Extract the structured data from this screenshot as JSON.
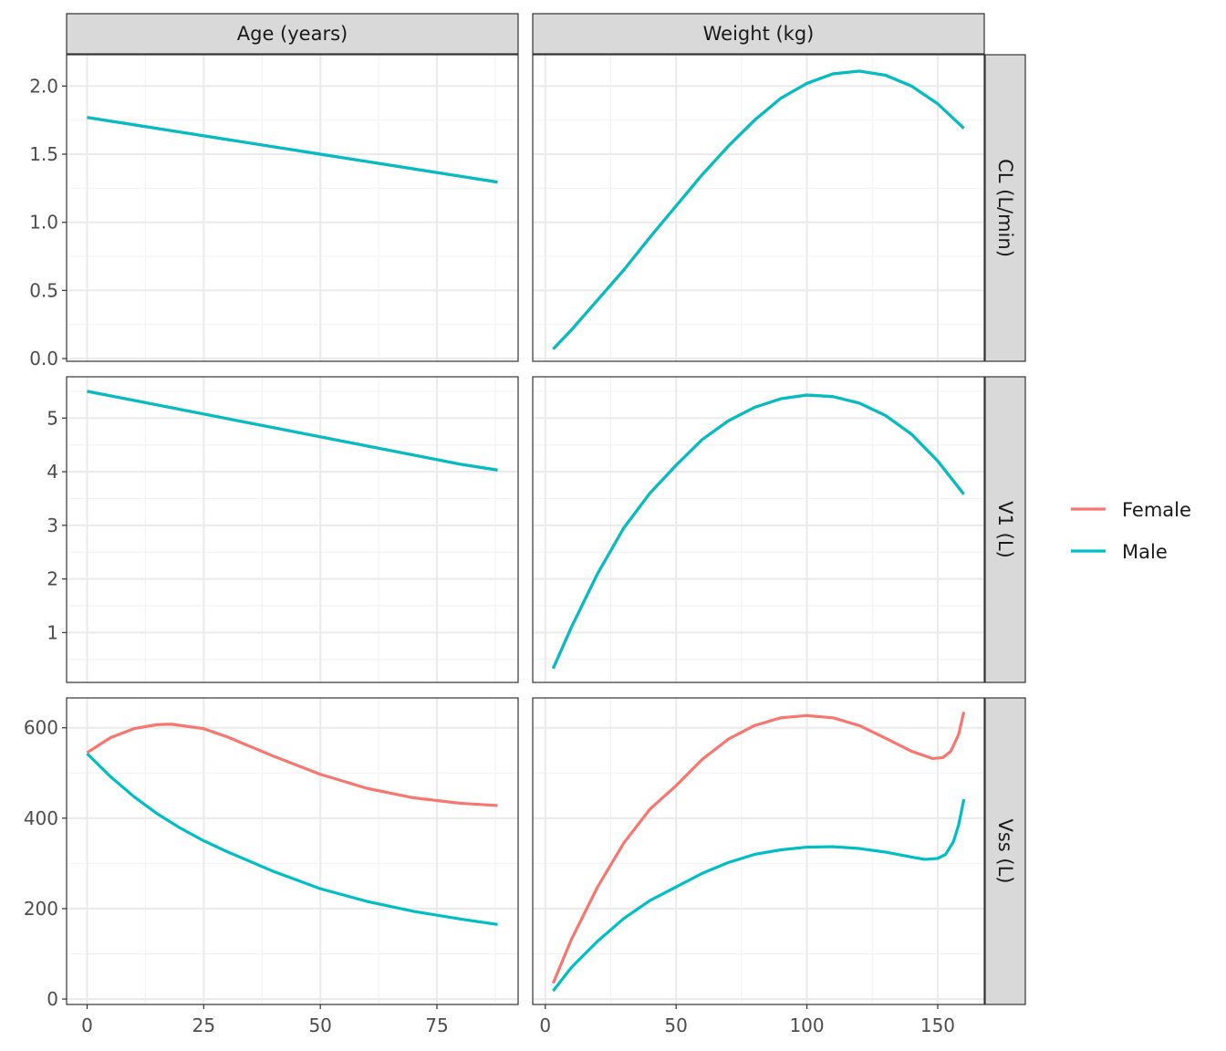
{
  "chart_data": {
    "type": "line",
    "layout": "facet-grid",
    "columns": [
      {
        "label": "Age (years)",
        "x_ticks": [
          0,
          25,
          50,
          75
        ],
        "xlim": [
          -4.4,
          92.4
        ]
      },
      {
        "label": "Weight (kg)",
        "x_ticks": [
          0,
          50,
          100,
          150
        ],
        "xlim": [
          -4.8,
          167.8
        ]
      }
    ],
    "rows": [
      {
        "label": "CL (L/min)",
        "y_ticks": [
          0.0,
          0.5,
          1.0,
          1.5,
          2.0
        ],
        "y_tick_labels": [
          "0.0",
          "0.5",
          "1.0",
          "1.5",
          "2.0"
        ],
        "ylim": [
          -0.02,
          2.23
        ]
      },
      {
        "label": "V1 (L)",
        "y_ticks": [
          1,
          2,
          3,
          4,
          5
        ],
        "y_tick_labels": [
          "1",
          "2",
          "3",
          "4",
          "5"
        ],
        "ylim": [
          0.07,
          5.77
        ]
      },
      {
        "label": "Vss (L)",
        "y_ticks": [
          0,
          200,
          400,
          600
        ],
        "y_tick_labels": [
          "0",
          "200",
          "400",
          "600"
        ],
        "ylim": [
          -12,
          666
        ]
      }
    ],
    "legend": {
      "position": "right",
      "entries": [
        {
          "name": "Female",
          "color": "#F8766D"
        },
        {
          "name": "Male",
          "color": "#00BFC4"
        }
      ]
    },
    "grid": true,
    "panels": [
      {
        "row": 0,
        "col": 0,
        "series": [
          {
            "name": "Female",
            "color": "#F8766D",
            "x": [
              0,
              10,
              20,
              30,
              40,
              50,
              60,
              70,
              80,
              88
            ],
            "y": [
              1.77,
              1.716,
              1.662,
              1.608,
              1.554,
              1.5,
              1.446,
              1.392,
              1.338,
              1.295
            ]
          },
          {
            "name": "Male",
            "color": "#00BFC4",
            "x": [
              0,
              10,
              20,
              30,
              40,
              50,
              60,
              70,
              80,
              88
            ],
            "y": [
              1.77,
              1.716,
              1.662,
              1.608,
              1.554,
              1.5,
              1.446,
              1.392,
              1.338,
              1.295
            ]
          }
        ]
      },
      {
        "row": 0,
        "col": 1,
        "series": [
          {
            "name": "Female",
            "color": "#F8766D",
            "x": [
              3,
              10,
              20,
              30,
              40,
              50,
              60,
              70,
              80,
              90,
              100,
              110,
              120,
              130,
              140,
              150,
              160
            ],
            "y": [
              0.07,
              0.21,
              0.43,
              0.65,
              0.89,
              1.12,
              1.35,
              1.56,
              1.75,
              1.91,
              2.02,
              2.09,
              2.11,
              2.08,
              2.0,
              1.87,
              1.69
            ]
          },
          {
            "name": "Male",
            "color": "#00BFC4",
            "x": [
              3,
              10,
              20,
              30,
              40,
              50,
              60,
              70,
              80,
              90,
              100,
              110,
              120,
              130,
              140,
              150,
              160
            ],
            "y": [
              0.07,
              0.21,
              0.43,
              0.65,
              0.89,
              1.12,
              1.35,
              1.56,
              1.75,
              1.91,
              2.02,
              2.09,
              2.11,
              2.08,
              2.0,
              1.87,
              1.69
            ]
          }
        ]
      },
      {
        "row": 1,
        "col": 0,
        "series": [
          {
            "name": "Female",
            "color": "#F8766D",
            "x": [
              0,
              10,
              20,
              30,
              40,
              50,
              60,
              70,
              80,
              88
            ],
            "y": [
              5.5,
              5.33,
              5.16,
              4.99,
              4.82,
              4.65,
              4.48,
              4.31,
              4.14,
              4.03
            ]
          },
          {
            "name": "Male",
            "color": "#00BFC4",
            "x": [
              0,
              10,
              20,
              30,
              40,
              50,
              60,
              70,
              80,
              88
            ],
            "y": [
              5.5,
              5.33,
              5.16,
              4.99,
              4.82,
              4.65,
              4.48,
              4.31,
              4.14,
              4.03
            ]
          }
        ]
      },
      {
        "row": 1,
        "col": 1,
        "series": [
          {
            "name": "Female",
            "color": "#F8766D",
            "x": [
              3,
              10,
              20,
              30,
              40,
              50,
              60,
              70,
              80,
              90,
              100,
              110,
              120,
              130,
              140,
              150,
              160
            ],
            "y": [
              0.33,
              1.1,
              2.1,
              2.95,
              3.6,
              4.12,
              4.6,
              4.95,
              5.2,
              5.36,
              5.43,
              5.4,
              5.28,
              5.05,
              4.7,
              4.2,
              3.58
            ]
          },
          {
            "name": "Male",
            "color": "#00BFC4",
            "x": [
              3,
              10,
              20,
              30,
              40,
              50,
              60,
              70,
              80,
              90,
              100,
              110,
              120,
              130,
              140,
              150,
              160
            ],
            "y": [
              0.33,
              1.1,
              2.1,
              2.95,
              3.6,
              4.12,
              4.6,
              4.95,
              5.2,
              5.36,
              5.43,
              5.4,
              5.28,
              5.05,
              4.7,
              4.2,
              3.58
            ]
          }
        ]
      },
      {
        "row": 2,
        "col": 0,
        "series": [
          {
            "name": "Female",
            "color": "#F8766D",
            "x": [
              0,
              5,
              10,
              15,
              18,
              25,
              30,
              40,
              50,
              60,
              70,
              80,
              88
            ],
            "y": [
              545,
              578,
              598,
              607,
              608,
              598,
              580,
              537,
              497,
              466,
              445,
              433,
              428
            ]
          },
          {
            "name": "Male",
            "color": "#00BFC4",
            "x": [
              0,
              5,
              10,
              15,
              20,
              25,
              30,
              40,
              50,
              60,
              70,
              80,
              88
            ],
            "y": [
              543,
              492,
              448,
              410,
              378,
              350,
              326,
              282,
              244,
              216,
              194,
              177,
              165
            ]
          }
        ]
      },
      {
        "row": 2,
        "col": 1,
        "series": [
          {
            "name": "Female",
            "color": "#F8766D",
            "x": [
              3,
              10,
              20,
              30,
              40,
              50,
              60,
              70,
              80,
              90,
              100,
              110,
              120,
              130,
              140,
              148,
              152,
              155,
              158,
              160
            ],
            "y": [
              35,
              132,
              248,
              345,
              420,
              472,
              530,
              575,
              605,
              622,
              627,
              622,
              605,
              577,
              548,
              532,
              534,
              548,
              585,
              635
            ]
          },
          {
            "name": "Male",
            "color": "#00BFC4",
            "x": [
              3,
              10,
              20,
              30,
              40,
              50,
              60,
              70,
              80,
              90,
              100,
              110,
              120,
              130,
              140,
              145,
              150,
              153,
              156,
              158,
              160
            ],
            "y": [
              18,
              70,
              128,
              178,
              218,
              248,
              278,
              302,
              320,
              330,
              336,
              337,
              333,
              325,
              314,
              309,
              311,
              320,
              348,
              385,
              442
            ]
          }
        ]
      }
    ]
  }
}
